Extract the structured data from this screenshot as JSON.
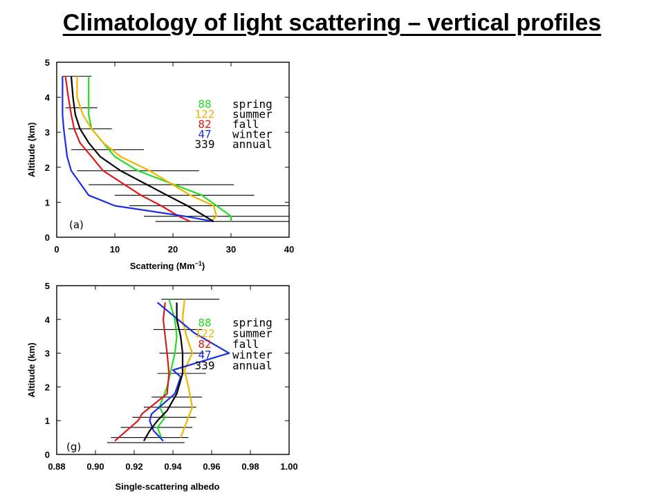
{
  "page": {
    "title": "Climatology of light scattering – vertical profiles"
  },
  "colors": {
    "spring": "#22dd22",
    "summer": "#f0b400",
    "fall": "#e01818",
    "winter": "#1a2ee0",
    "annual": "#000000"
  },
  "chart_data": [
    {
      "type": "line",
      "panel_label": "(a)",
      "xlabel": "Scattering (Mm",
      "xlabel_sup": "−1",
      "xlabel_suffix": ")",
      "ylabel": "Altitude (km)",
      "xlim": [
        0,
        40
      ],
      "ylim": [
        0,
        5
      ],
      "xticks": [
        "0",
        "10",
        "20",
        "30",
        "40"
      ],
      "yticks": [
        "0",
        "1",
        "2",
        "3",
        "4",
        "5"
      ],
      "legend": [
        {
          "count": "88",
          "name": "spring",
          "color": "#22dd22"
        },
        {
          "count": "122",
          "name": "summer",
          "color": "#f0b400"
        },
        {
          "count": "82",
          "name": "fall",
          "color": "#e01818"
        },
        {
          "count": "47",
          "name": "winter",
          "color": "#1a2ee0"
        },
        {
          "count": "339",
          "name": "annual",
          "color": "#000000"
        }
      ],
      "series": [
        {
          "name": "spring",
          "color": "#22dd22",
          "x": [
            30,
            30,
            27.5,
            25,
            14,
            10,
            8,
            6,
            5.5,
            5.5,
            5.5
          ],
          "y": [
            0.45,
            0.6,
            0.9,
            1.2,
            1.9,
            2.3,
            2.7,
            3.1,
            3.5,
            4.0,
            4.6
          ]
        },
        {
          "name": "summer",
          "color": "#f0b400",
          "x": [
            26.5,
            27.5,
            27,
            23,
            16,
            11,
            8,
            6,
            4.5,
            3.5,
            3.5
          ],
          "y": [
            0.45,
            0.6,
            0.9,
            1.2,
            1.9,
            2.3,
            2.7,
            3.1,
            3.5,
            4.0,
            4.6
          ]
        },
        {
          "name": "fall",
          "color": "#e01818",
          "x": [
            23,
            21,
            18,
            14.5,
            8,
            6,
            4,
            3,
            2.5,
            2,
            1.5
          ],
          "y": [
            0.45,
            0.6,
            0.9,
            1.2,
            1.9,
            2.3,
            2.7,
            3.1,
            3.5,
            4.0,
            4.6
          ]
        },
        {
          "name": "winter",
          "color": "#1a2ee0",
          "x": [
            27,
            22,
            10,
            5.5,
            2.5,
            1.8,
            1.5,
            1.2,
            1,
            1,
            1
          ],
          "y": [
            0.45,
            0.6,
            0.9,
            1.2,
            1.9,
            2.3,
            2.7,
            3.1,
            3.5,
            4.0,
            4.6
          ]
        },
        {
          "name": "annual",
          "color": "#000000",
          "x": [
            27,
            25.5,
            22.5,
            19,
            11,
            7.5,
            5.5,
            4,
            3.2,
            2.8,
            2.5
          ],
          "y": [
            0.45,
            0.6,
            0.9,
            1.2,
            1.9,
            2.3,
            2.7,
            3.1,
            3.5,
            4.0,
            4.6
          ]
        }
      ],
      "error_bars": [
        {
          "y": 0.45,
          "lo": 17,
          "hi": 40
        },
        {
          "y": 0.6,
          "lo": 15,
          "hi": 40
        },
        {
          "y": 0.9,
          "lo": 12.5,
          "hi": 40
        },
        {
          "y": 1.2,
          "lo": 10,
          "hi": 34
        },
        {
          "y": 1.5,
          "lo": 5.5,
          "hi": 30.5
        },
        {
          "y": 1.9,
          "lo": 3.5,
          "hi": 24.5
        },
        {
          "y": 2.5,
          "lo": 2.5,
          "hi": 15
        },
        {
          "y": 3.1,
          "lo": 2,
          "hi": 9.5
        },
        {
          "y": 3.7,
          "lo": 1.5,
          "hi": 7
        },
        {
          "y": 4.6,
          "lo": 1,
          "hi": 6
        }
      ]
    },
    {
      "type": "line",
      "panel_label": "(g)",
      "xlabel": "Single-scattering albedo",
      "ylabel": "Altitude (km)",
      "xlim": [
        0.88,
        1.0
      ],
      "ylim": [
        0,
        5
      ],
      "xticks": [
        "0.88",
        "0.90",
        "0.92",
        "0.94",
        "0.96",
        "0.98",
        "1.00"
      ],
      "yticks": [
        "0",
        "1",
        "2",
        "3",
        "4",
        "5"
      ],
      "legend": [
        {
          "count": "88",
          "name": "spring",
          "color": "#22dd22"
        },
        {
          "count": "122",
          "name": "summer",
          "color": "#f0b400"
        },
        {
          "count": "82",
          "name": "fall",
          "color": "#e01818"
        },
        {
          "count": "47",
          "name": "winter",
          "color": "#1a2ee0"
        },
        {
          "count": "339",
          "name": "annual",
          "color": "#000000"
        }
      ],
      "series": [
        {
          "name": "spring",
          "color": "#22dd22",
          "x": [
            0.934,
            0.932,
            0.936,
            0.933,
            0.937,
            0.939,
            0.941,
            0.942,
            0.941,
            0.938
          ],
          "y": [
            0.5,
            0.8,
            1.1,
            1.4,
            2.0,
            2.5,
            3.0,
            3.5,
            4.0,
            4.6
          ]
        },
        {
          "name": "summer",
          "color": "#f0b400",
          "x": [
            0.944,
            0.946,
            0.948,
            0.95,
            0.948,
            0.946,
            0.95,
            0.947,
            0.945,
            0.946
          ],
          "y": [
            0.5,
            0.8,
            1.1,
            1.4,
            2.0,
            2.5,
            3.0,
            3.5,
            4.0,
            4.6
          ]
        },
        {
          "name": "fall",
          "color": "#e01818",
          "x": [
            0.91,
            0.916,
            0.922,
            0.924,
            0.937,
            0.938,
            0.937,
            0.936,
            0.935,
            0.936
          ],
          "y": [
            0.4,
            0.7,
            1.0,
            1.2,
            1.8,
            2.4,
            3.0,
            3.5,
            4.0,
            4.5
          ]
        },
        {
          "name": "winter",
          "color": "#1a2ee0",
          "x": [
            0.935,
            0.93,
            0.928,
            0.929,
            0.941,
            0.944,
            0.94,
            0.969,
            0.951,
            0.932
          ],
          "y": [
            0.4,
            0.7,
            1.0,
            1.2,
            1.8,
            2.3,
            2.5,
            3.0,
            3.6,
            4.5
          ]
        },
        {
          "name": "annual",
          "color": "#000000",
          "x": [
            0.925,
            0.928,
            0.932,
            0.937,
            0.942,
            0.945,
            0.945,
            0.944,
            0.942,
            0.942
          ],
          "y": [
            0.4,
            0.7,
            1.0,
            1.3,
            1.8,
            2.4,
            3.0,
            3.5,
            4.0,
            4.5
          ]
        }
      ],
      "error_bars": [
        {
          "y": 0.35,
          "lo": 0.906,
          "hi": 0.946
        },
        {
          "y": 0.5,
          "lo": 0.908,
          "hi": 0.948
        },
        {
          "y": 0.8,
          "lo": 0.913,
          "hi": 0.95
        },
        {
          "y": 1.1,
          "lo": 0.919,
          "hi": 0.952
        },
        {
          "y": 1.4,
          "lo": 0.925,
          "hi": 0.952
        },
        {
          "y": 1.7,
          "lo": 0.929,
          "hi": 0.955
        },
        {
          "y": 2.4,
          "lo": 0.932,
          "hi": 0.957
        },
        {
          "y": 3.0,
          "lo": 0.933,
          "hi": 0.956
        },
        {
          "y": 3.7,
          "lo": 0.93,
          "hi": 0.955
        },
        {
          "y": 4.6,
          "lo": 0.934,
          "hi": 0.964
        }
      ]
    }
  ]
}
